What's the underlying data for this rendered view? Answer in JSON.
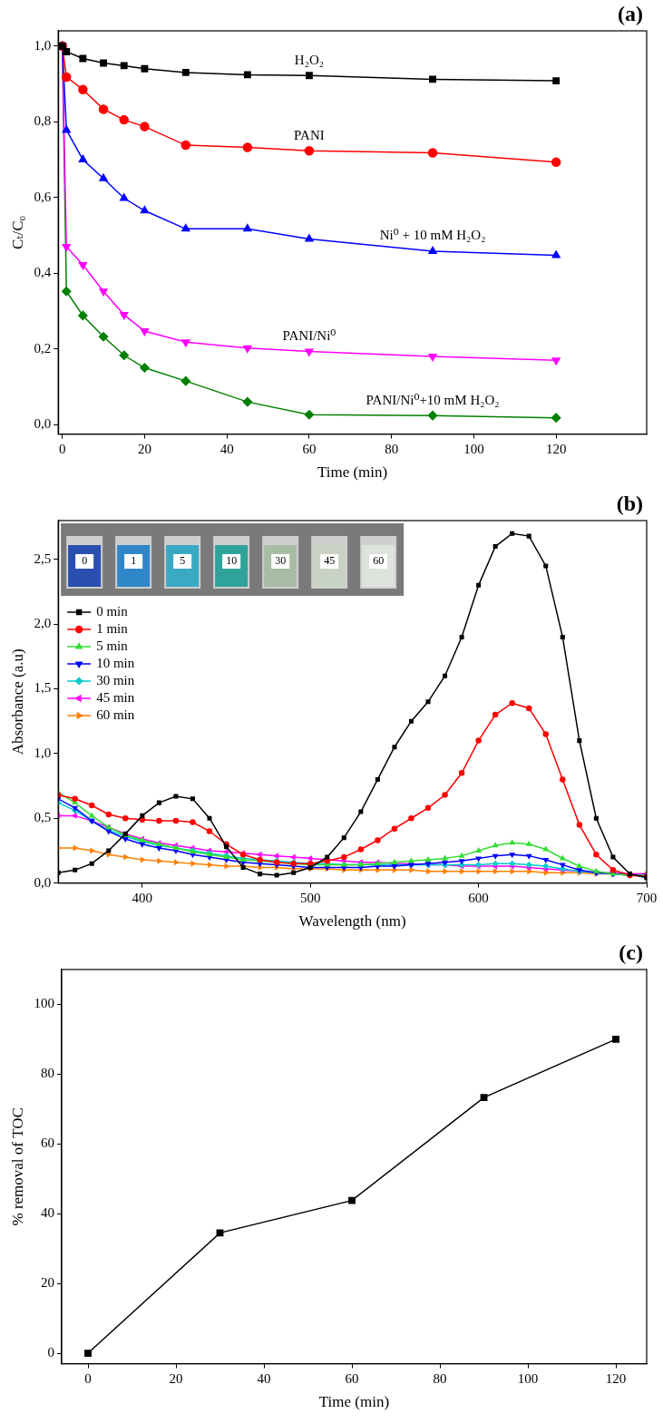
{
  "chart_data": [
    {
      "type": "line",
      "panel_label": "(a)",
      "x_label": "Time (min)",
      "y_label": "Cₜ/C₀",
      "x": [
        0,
        1,
        5,
        10,
        15,
        20,
        30,
        45,
        60,
        90,
        120
      ],
      "series": [
        {
          "name": "H₂O₂",
          "color": "#000000",
          "marker": "square",
          "values": [
            1.0,
            0.985,
            0.967,
            0.955,
            0.948,
            0.94,
            0.93,
            0.924,
            0.922,
            0.912,
            0.908
          ]
        },
        {
          "name": "PANI",
          "color": "#ff0000",
          "marker": "circle",
          "values": [
            1.0,
            0.918,
            0.885,
            0.833,
            0.805,
            0.787,
            0.738,
            0.732,
            0.723,
            0.718,
            0.693
          ]
        },
        {
          "name": "Ni⁰ + 10 mM H₂O₂",
          "color": "#0000ff",
          "marker": "triangle",
          "values": [
            1.0,
            0.778,
            0.7,
            0.65,
            0.598,
            0.565,
            0.517,
            0.517,
            0.49,
            0.458,
            0.447
          ]
        },
        {
          "name": "PANI/Ni⁰",
          "color": "#ff00ff",
          "marker": "triangle_down",
          "values": [
            1.0,
            0.47,
            0.422,
            0.352,
            0.29,
            0.247,
            0.218,
            0.202,
            0.193,
            0.18,
            0.17
          ]
        },
        {
          "name": "PANI/Ni⁰+10 mM H₂O₂",
          "color": "#008000",
          "marker": "diamond",
          "values": [
            1.0,
            0.352,
            0.288,
            0.232,
            0.183,
            0.15,
            0.115,
            0.06,
            0.026,
            0.024,
            0.018
          ]
        }
      ],
      "xlim": [
        -1,
        142
      ],
      "xticks": [
        0,
        20,
        40,
        60,
        80,
        100,
        120
      ],
      "ylim": [
        -0.025,
        1.04
      ],
      "yticks": [
        {
          "value": 0,
          "label": "0,0"
        },
        {
          "value": 0.2,
          "label": "0,2"
        },
        {
          "value": 0.4,
          "label": "0,4"
        },
        {
          "value": 0.6,
          "label": "0,6"
        },
        {
          "value": 0.8,
          "label": "0,8"
        },
        {
          "value": 1.0,
          "label": "1,0"
        }
      ],
      "grid": false
    },
    {
      "type": "line",
      "panel_label": "(b)",
      "x_label": "Wavelength (nm)",
      "y_label": "Absorbance (a.u)",
      "inset_labels": [
        "0",
        "1",
        "5",
        "10",
        "30",
        "45",
        "60"
      ],
      "x": [
        350,
        360,
        370,
        380,
        390,
        400,
        410,
        420,
        430,
        440,
        450,
        460,
        470,
        480,
        490,
        500,
        510,
        520,
        530,
        540,
        550,
        560,
        570,
        580,
        590,
        600,
        610,
        620,
        630,
        640,
        650,
        660,
        670,
        680,
        690,
        700
      ],
      "series": [
        {
          "name": "0 min",
          "color": "#000000",
          "marker": "square",
          "values": [
            0.08,
            0.1,
            0.15,
            0.25,
            0.38,
            0.52,
            0.62,
            0.67,
            0.65,
            0.5,
            0.28,
            0.12,
            0.07,
            0.06,
            0.08,
            0.12,
            0.2,
            0.35,
            0.55,
            0.8,
            1.05,
            1.25,
            1.4,
            1.6,
            1.9,
            2.3,
            2.6,
            2.7,
            2.68,
            2.45,
            1.9,
            1.1,
            0.5,
            0.2,
            0.07,
            0.04
          ]
        },
        {
          "name": "1 min",
          "color": "#ff0000",
          "marker": "circle",
          "values": [
            0.68,
            0.65,
            0.6,
            0.53,
            0.5,
            0.49,
            0.48,
            0.48,
            0.47,
            0.4,
            0.3,
            0.22,
            0.18,
            0.16,
            0.15,
            0.15,
            0.17,
            0.2,
            0.26,
            0.33,
            0.42,
            0.5,
            0.58,
            0.68,
            0.85,
            1.1,
            1.3,
            1.39,
            1.35,
            1.15,
            0.8,
            0.45,
            0.22,
            0.1,
            0.06,
            0.05
          ]
        },
        {
          "name": "5 min",
          "color": "#33dd33",
          "marker": "triangle",
          "values": [
            0.7,
            0.62,
            0.52,
            0.43,
            0.37,
            0.33,
            0.3,
            0.27,
            0.24,
            0.22,
            0.2,
            0.18,
            0.17,
            0.16,
            0.15,
            0.14,
            0.14,
            0.14,
            0.14,
            0.15,
            0.16,
            0.17,
            0.18,
            0.19,
            0.21,
            0.25,
            0.29,
            0.31,
            0.3,
            0.26,
            0.19,
            0.13,
            0.09,
            0.07,
            0.06,
            0.06
          ]
        },
        {
          "name": "10 min",
          "color": "#0000ff",
          "marker": "triangle_down",
          "values": [
            0.65,
            0.58,
            0.48,
            0.4,
            0.34,
            0.3,
            0.27,
            0.25,
            0.22,
            0.2,
            0.18,
            0.16,
            0.15,
            0.14,
            0.13,
            0.12,
            0.12,
            0.12,
            0.12,
            0.13,
            0.13,
            0.14,
            0.15,
            0.16,
            0.17,
            0.19,
            0.21,
            0.22,
            0.21,
            0.18,
            0.14,
            0.1,
            0.08,
            0.07,
            0.06,
            0.06
          ]
        },
        {
          "name": "30 min",
          "color": "#00cccc",
          "marker": "diamond",
          "values": [
            0.62,
            0.56,
            0.48,
            0.41,
            0.36,
            0.32,
            0.29,
            0.27,
            0.25,
            0.23,
            0.21,
            0.19,
            0.18,
            0.17,
            0.16,
            0.15,
            0.15,
            0.14,
            0.14,
            0.14,
            0.14,
            0.14,
            0.14,
            0.14,
            0.14,
            0.14,
            0.15,
            0.15,
            0.14,
            0.13,
            0.11,
            0.09,
            0.08,
            0.07,
            0.06,
            0.06
          ]
        },
        {
          "name": "45 min",
          "color": "#ff00ff",
          "marker": "triangle_left",
          "values": [
            0.52,
            0.52,
            0.48,
            0.43,
            0.38,
            0.34,
            0.31,
            0.29,
            0.27,
            0.25,
            0.24,
            0.23,
            0.22,
            0.21,
            0.2,
            0.19,
            0.18,
            0.17,
            0.16,
            0.16,
            0.15,
            0.15,
            0.14,
            0.14,
            0.13,
            0.13,
            0.13,
            0.13,
            0.12,
            0.11,
            0.1,
            0.09,
            0.08,
            0.08,
            0.07,
            0.07
          ]
        },
        {
          "name": "60 min",
          "color": "#ff8000",
          "marker": "triangle_right",
          "values": [
            0.27,
            0.27,
            0.25,
            0.22,
            0.2,
            0.18,
            0.17,
            0.16,
            0.15,
            0.14,
            0.13,
            0.13,
            0.12,
            0.12,
            0.11,
            0.11,
            0.11,
            0.1,
            0.1,
            0.1,
            0.1,
            0.1,
            0.09,
            0.09,
            0.09,
            0.09,
            0.09,
            0.09,
            0.09,
            0.08,
            0.08,
            0.08,
            0.07,
            0.07,
            0.07,
            0.07
          ]
        }
      ],
      "xlim": [
        350,
        700
      ],
      "xticks": [
        400,
        500,
        600,
        700
      ],
      "ylim": [
        0,
        2.8
      ],
      "yticks": [
        {
          "value": 0,
          "label": "0,0"
        },
        {
          "value": 0.5,
          "label": "0,5"
        },
        {
          "value": 1.0,
          "label": "1,0"
        },
        {
          "value": 1.5,
          "label": "1,5"
        },
        {
          "value": 2.0,
          "label": "2,0"
        },
        {
          "value": 2.5,
          "label": "2,5"
        }
      ],
      "legend": "upper left",
      "grid": false
    },
    {
      "type": "line",
      "panel_label": "(c)",
      "x_label": "Time (min)",
      "y_label": "% removal of TOC",
      "x": [
        0,
        30,
        60,
        90,
        120
      ],
      "series": [
        {
          "color": "#000000",
          "marker": "square",
          "values": [
            0,
            34.5,
            43.8,
            73.3,
            90
          ]
        }
      ],
      "xlim": [
        -6,
        127
      ],
      "xticks": [
        0,
        20,
        40,
        60,
        80,
        100,
        120
      ],
      "ylim": [
        -3,
        110
      ],
      "yticks": [
        0,
        20,
        40,
        60,
        80,
        100
      ],
      "grid": false
    }
  ]
}
